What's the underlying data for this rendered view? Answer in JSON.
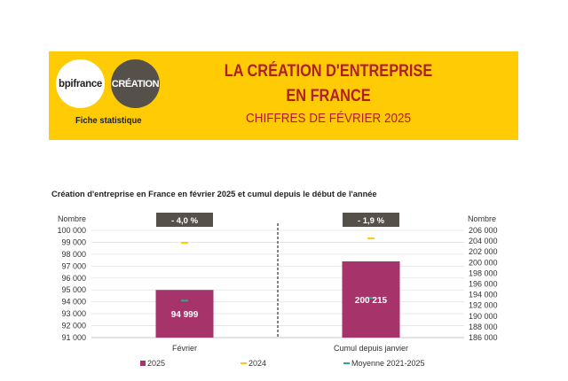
{
  "header": {
    "logo_bpi": "bpifrance",
    "logo_creation": "CRÉATION",
    "fiche": "Fiche statistique",
    "title_line1": "LA CRÉATION D'ENTREPRISE",
    "title_line2": "EN FRANCE",
    "title_line3": "CHIFFRES DE FÉVRIER 2025",
    "banner_color": "#FFCB05",
    "title_color": "#B01F29"
  },
  "chart_data": {
    "type": "bar",
    "title": "Création d'entreprise en France en février 2025 et cumul depuis le début de l'année",
    "categories": [
      "Février",
      "Cumul depuis janvier"
    ],
    "left_axis": {
      "label": "Nombre",
      "ylim": [
        91000,
        100000
      ],
      "ticks": [
        "91 000",
        "92 000",
        "93 000",
        "94 000",
        "95 000",
        "96 000",
        "97 000",
        "98 000",
        "99 000",
        "100 000"
      ]
    },
    "right_axis": {
      "label": "Nombre",
      "ylim": [
        186000,
        206000
      ],
      "ticks": [
        "186 000",
        "188 000",
        "190 000",
        "192 000",
        "194 000",
        "196 000",
        "198 000",
        "200 000",
        "202 000",
        "204 000",
        "206 000"
      ]
    },
    "series": [
      {
        "name": "2025",
        "type": "bar",
        "color": "#A6346A",
        "values": [
          94999,
          200215
        ],
        "labels": [
          "94 999",
          "200 215"
        ],
        "axis": [
          "left",
          "right"
        ]
      },
      {
        "name": "2024",
        "type": "marker",
        "color": "#FFCB05",
        "values": [
          98950,
          204500
        ],
        "axis": [
          "left",
          "right"
        ]
      },
      {
        "name": "Moyenne 2021-2025",
        "type": "marker",
        "color": "#2BAA8E",
        "values": [
          94100,
          193400
        ],
        "axis": [
          "left",
          "right"
        ]
      }
    ],
    "badges": [
      "- 4,0 %",
      "- 1,9 %"
    ],
    "badge_color": "#55514A",
    "grid": true,
    "legend_position": "bottom"
  }
}
